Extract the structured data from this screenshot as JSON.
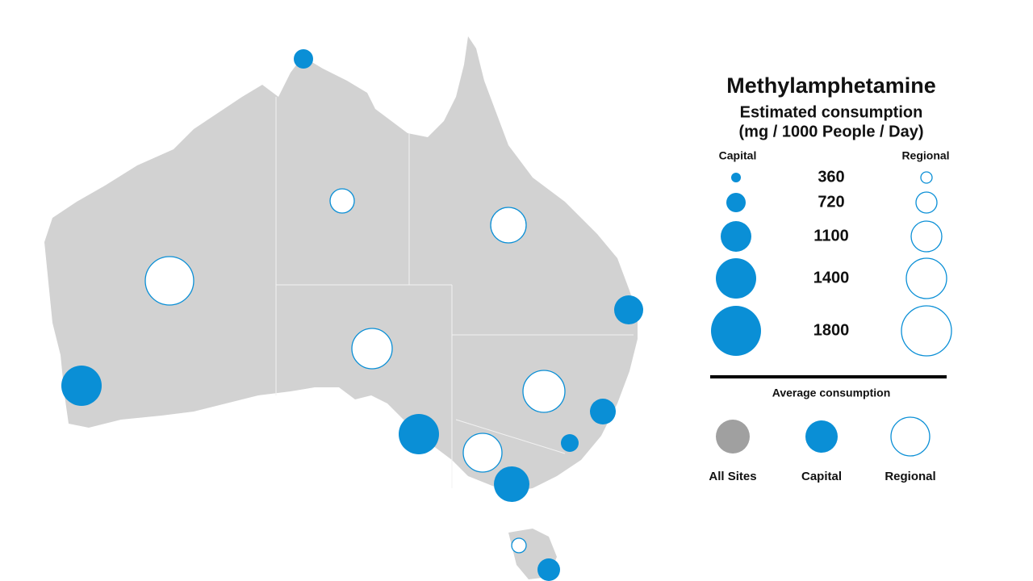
{
  "legend": {
    "title": "Methylamphetamine",
    "subtitle": [
      "Estimated consumption",
      "(mg / 1000 People / Day)"
    ],
    "capital_label": "Capital",
    "regional_label": "Regional",
    "sizes": [
      360,
      720,
      1100,
      1400,
      1800
    ],
    "average_title": "Average consumption",
    "average_items": [
      "All Sites",
      "Capital",
      "Regional"
    ]
  }
}
